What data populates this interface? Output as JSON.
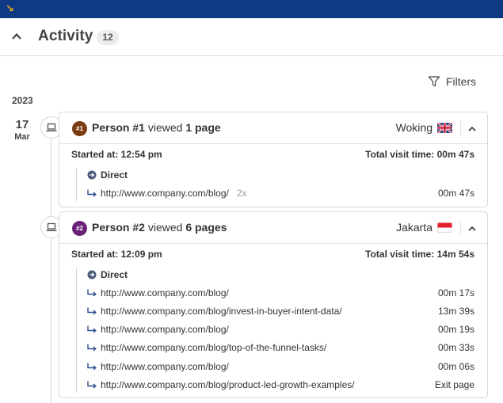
{
  "header": {
    "title": "Activity",
    "count": "12"
  },
  "toolbar": {
    "filters_label": "Filters"
  },
  "timeline": {
    "year": "2023",
    "date_day": "17",
    "date_month": "Mar"
  },
  "visits": [
    {
      "avatar": "#1",
      "avatar_color": "#7a3b12",
      "person": "Person #1",
      "verb": "viewed",
      "pages": "1 page",
      "location": "Woking",
      "flag": "uk",
      "started": "Started at: 12:54 pm",
      "total": "Total visit time: 00m 47s",
      "source": "Direct",
      "pageviews": [
        {
          "url": "http://www.company.com/blog/",
          "count": "2x",
          "time": "00m 47s"
        }
      ]
    },
    {
      "avatar": "#2",
      "avatar_color": "#6a2178",
      "person": "Person #2",
      "verb": "viewed",
      "pages": "6 pages",
      "location": "Jakarta",
      "flag": "indonesia",
      "started": "Started at: 12:09 pm",
      "total": "Total visit time: 14m 54s",
      "source": "Direct",
      "pageviews": [
        {
          "url": "http://www.company.com/blog/",
          "time": "00m 17s"
        },
        {
          "url": "http://www.company.com/blog/invest-in-buyer-intent-data/",
          "time": "13m 39s"
        },
        {
          "url": "http://www.company.com/blog/",
          "time": "00m 19s"
        },
        {
          "url": "http://www.company.com/blog/top-of-the-funnel-tasks/",
          "time": "00m 33s"
        },
        {
          "url": "http://www.company.com/blog/",
          "time": "00m 06s"
        },
        {
          "url": "http://www.company.com/blog/product-led-growth-examples/",
          "time": "Exit page"
        }
      ]
    }
  ],
  "icons": {
    "collapse": "chevron-up-icon",
    "filter": "filter-icon",
    "device": "laptop-icon",
    "source": "arrow-circle-icon",
    "pageview": "return-arrow-icon"
  },
  "colors": {
    "topbar": "#0d3a82",
    "corner_arrow": "#f2b01e",
    "link_icon": "#2a4e8c"
  }
}
